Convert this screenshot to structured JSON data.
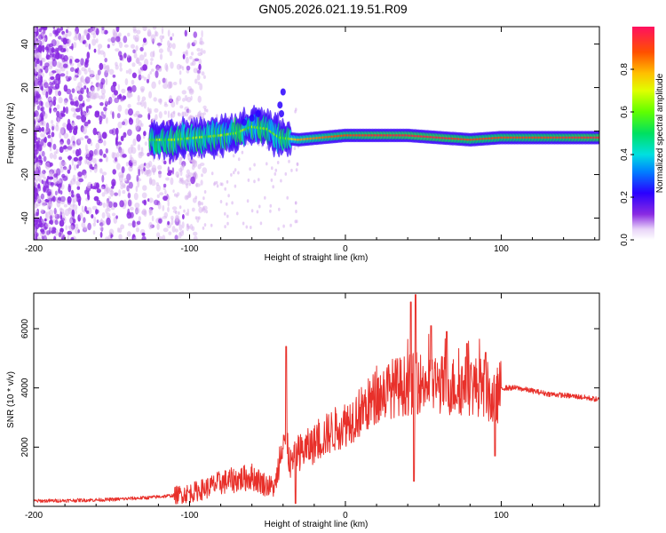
{
  "title": "GN05.2026.021.19.51.R09",
  "colors": {
    "line": "#e8302a",
    "speckle": "#8a2be2",
    "speckle_light": "#d8b4f0"
  },
  "chart_data": [
    {
      "type": "heatmap",
      "title": "GN05.2026.021.19.51.R09",
      "xlabel": "Height of straight line (km)",
      "ylabel": "Frequency (Hz)",
      "xlim": [
        -200,
        163
      ],
      "ylim": [
        -50,
        48
      ],
      "xticks": [
        -200,
        -100,
        0,
        100
      ],
      "yticks": [
        -40,
        -20,
        0,
        20,
        40
      ],
      "xtick_labels": [
        "-200",
        "-100",
        "0",
        "100"
      ],
      "ytick_labels": [
        "-40",
        "-20",
        "0",
        "20",
        "40"
      ],
      "colorbar": {
        "label": "Normalized spectral amplitude",
        "range": [
          0,
          1
        ],
        "ticks": [
          "0.0",
          "0.2",
          "0.4",
          "0.6",
          "0.8"
        ],
        "tick_values": [
          0.0,
          0.2,
          0.4,
          0.6,
          0.8
        ]
      },
      "ridge": [
        {
          "x": -125,
          "f": -4,
          "amp": 0.35
        },
        {
          "x": -110,
          "f": -4,
          "amp": 0.45
        },
        {
          "x": -95,
          "f": -3,
          "amp": 0.5
        },
        {
          "x": -80,
          "f": -2,
          "amp": 0.5
        },
        {
          "x": -70,
          "f": -1,
          "amp": 0.55
        },
        {
          "x": -60,
          "f": 2,
          "amp": 0.5
        },
        {
          "x": -50,
          "f": 1,
          "amp": 0.5
        },
        {
          "x": -42,
          "f": -3,
          "amp": 0.55
        },
        {
          "x": -30,
          "f": -4,
          "amp": 0.8
        },
        {
          "x": -15,
          "f": -3,
          "amp": 0.85
        },
        {
          "x": 0,
          "f": -2,
          "amp": 0.9
        },
        {
          "x": 20,
          "f": -2,
          "amp": 0.95
        },
        {
          "x": 40,
          "f": -2,
          "amp": 0.95
        },
        {
          "x": 60,
          "f": -3,
          "amp": 0.95
        },
        {
          "x": 80,
          "f": -4,
          "amp": 0.9
        },
        {
          "x": 100,
          "f": -3,
          "amp": 0.9
        },
        {
          "x": 120,
          "f": -3,
          "amp": 0.9
        },
        {
          "x": 140,
          "f": -3,
          "amp": 0.92
        },
        {
          "x": 163,
          "f": -3,
          "amp": 0.95
        }
      ]
    },
    {
      "type": "line",
      "xlabel": "Height of straight line (km)",
      "ylabel": "SNR (10 * v/v)",
      "xlim": [
        -200,
        163
      ],
      "ylim": [
        0,
        7200
      ],
      "xticks": [
        -200,
        -100,
        0,
        100
      ],
      "yticks": [
        2000,
        4000,
        6000
      ],
      "xtick_labels": [
        "-200",
        "-100",
        "0",
        "100"
      ],
      "ytick_labels": [
        "2000",
        "4000",
        "6000"
      ],
      "series": [
        {
          "name": "SNR",
          "x": [
            -200,
            -175,
            -150,
            -125,
            -110,
            -100,
            -90,
            -80,
            -70,
            -60,
            -50,
            -45,
            -40,
            -35,
            -30,
            -20,
            -10,
            0,
            10,
            20,
            30,
            40,
            50,
            60,
            70,
            80,
            90,
            95,
            100,
            110,
            120,
            130,
            140,
            150,
            163
          ],
          "values": [
            180,
            200,
            230,
            300,
            370,
            450,
            600,
            800,
            900,
            1000,
            700,
            650,
            2500,
            1400,
            1800,
            2100,
            2500,
            2800,
            3200,
            3700,
            4000,
            4100,
            4200,
            4100,
            4050,
            4100,
            4000,
            3500,
            4000,
            4000,
            3900,
            3800,
            3750,
            3700,
            3600
          ]
        }
      ],
      "peaks": [
        {
          "x": -38,
          "y": 5400
        },
        {
          "x": 42,
          "y": 6900
        },
        {
          "x": 45,
          "y": 7150
        },
        {
          "x": 55,
          "y": 6100
        },
        {
          "x": 65,
          "y": 5900
        },
        {
          "x": 78,
          "y": 5500
        },
        {
          "x": 90,
          "y": 5200
        }
      ],
      "troughs": [
        {
          "x": -32,
          "y": 100
        },
        {
          "x": 44,
          "y": 850
        },
        {
          "x": 96,
          "y": 1700
        }
      ]
    }
  ]
}
